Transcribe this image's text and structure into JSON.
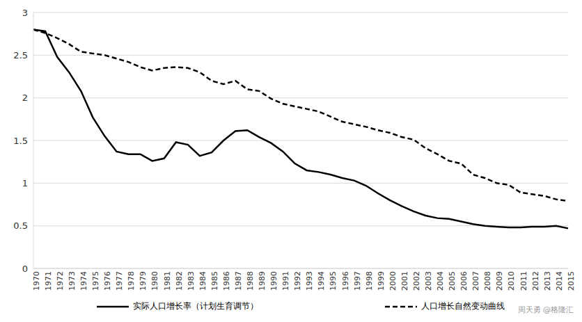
{
  "chart_data": {
    "type": "line",
    "categories": [
      "1970",
      "1971",
      "1972",
      "1973",
      "1974",
      "1975",
      "1976",
      "1977",
      "1978",
      "1979",
      "1980",
      "1981",
      "1982",
      "1983",
      "1984",
      "1985",
      "1986",
      "1987",
      "1988",
      "1989",
      "1990",
      "1991",
      "1992",
      "1993",
      "1994",
      "1995",
      "1996",
      "1997",
      "1998",
      "1999",
      "2000",
      "2001",
      "2002",
      "2003",
      "2004",
      "2005",
      "2006",
      "2007",
      "2008",
      "2009",
      "2010",
      "2011",
      "2012",
      "2013",
      "2014",
      "2015"
    ],
    "series": [
      {
        "name": "实际人口增长率（计划生育调节）",
        "color": "#000000",
        "line_style": "solid",
        "marker": "none",
        "values": [
          2.8,
          2.78,
          2.48,
          2.3,
          2.08,
          1.77,
          1.55,
          1.37,
          1.34,
          1.34,
          1.26,
          1.29,
          1.48,
          1.45,
          1.32,
          1.36,
          1.5,
          1.61,
          1.62,
          1.54,
          1.47,
          1.37,
          1.23,
          1.15,
          1.13,
          1.1,
          1.06,
          1.03,
          0.97,
          0.88,
          0.8,
          0.73,
          0.67,
          0.62,
          0.59,
          0.58,
          0.55,
          0.52,
          0.5,
          0.49,
          0.48,
          0.48,
          0.49,
          0.49,
          0.5,
          0.47
        ]
      },
      {
        "name": "人口增长自然变动曲线",
        "color": "#000000",
        "line_style": "dashed",
        "marker": "none",
        "values": [
          2.8,
          2.76,
          2.7,
          2.63,
          2.54,
          2.52,
          2.5,
          2.46,
          2.42,
          2.36,
          2.32,
          2.35,
          2.36,
          2.35,
          2.3,
          2.2,
          2.16,
          2.2,
          2.1,
          2.08,
          1.99,
          1.93,
          1.9,
          1.87,
          1.84,
          1.78,
          1.72,
          1.69,
          1.66,
          1.62,
          1.59,
          1.54,
          1.51,
          1.41,
          1.34,
          1.26,
          1.23,
          1.1,
          1.06,
          1.0,
          0.98,
          0.89,
          0.87,
          0.85,
          0.81,
          0.79
        ]
      }
    ],
    "ylim": [
      0,
      3
    ],
    "yticks": [
      0,
      0.5,
      1,
      1.5,
      2,
      2.5,
      3
    ],
    "grid": true,
    "legend": "bottom",
    "annotations": [
      "周天勇 @格隆汇"
    ]
  }
}
